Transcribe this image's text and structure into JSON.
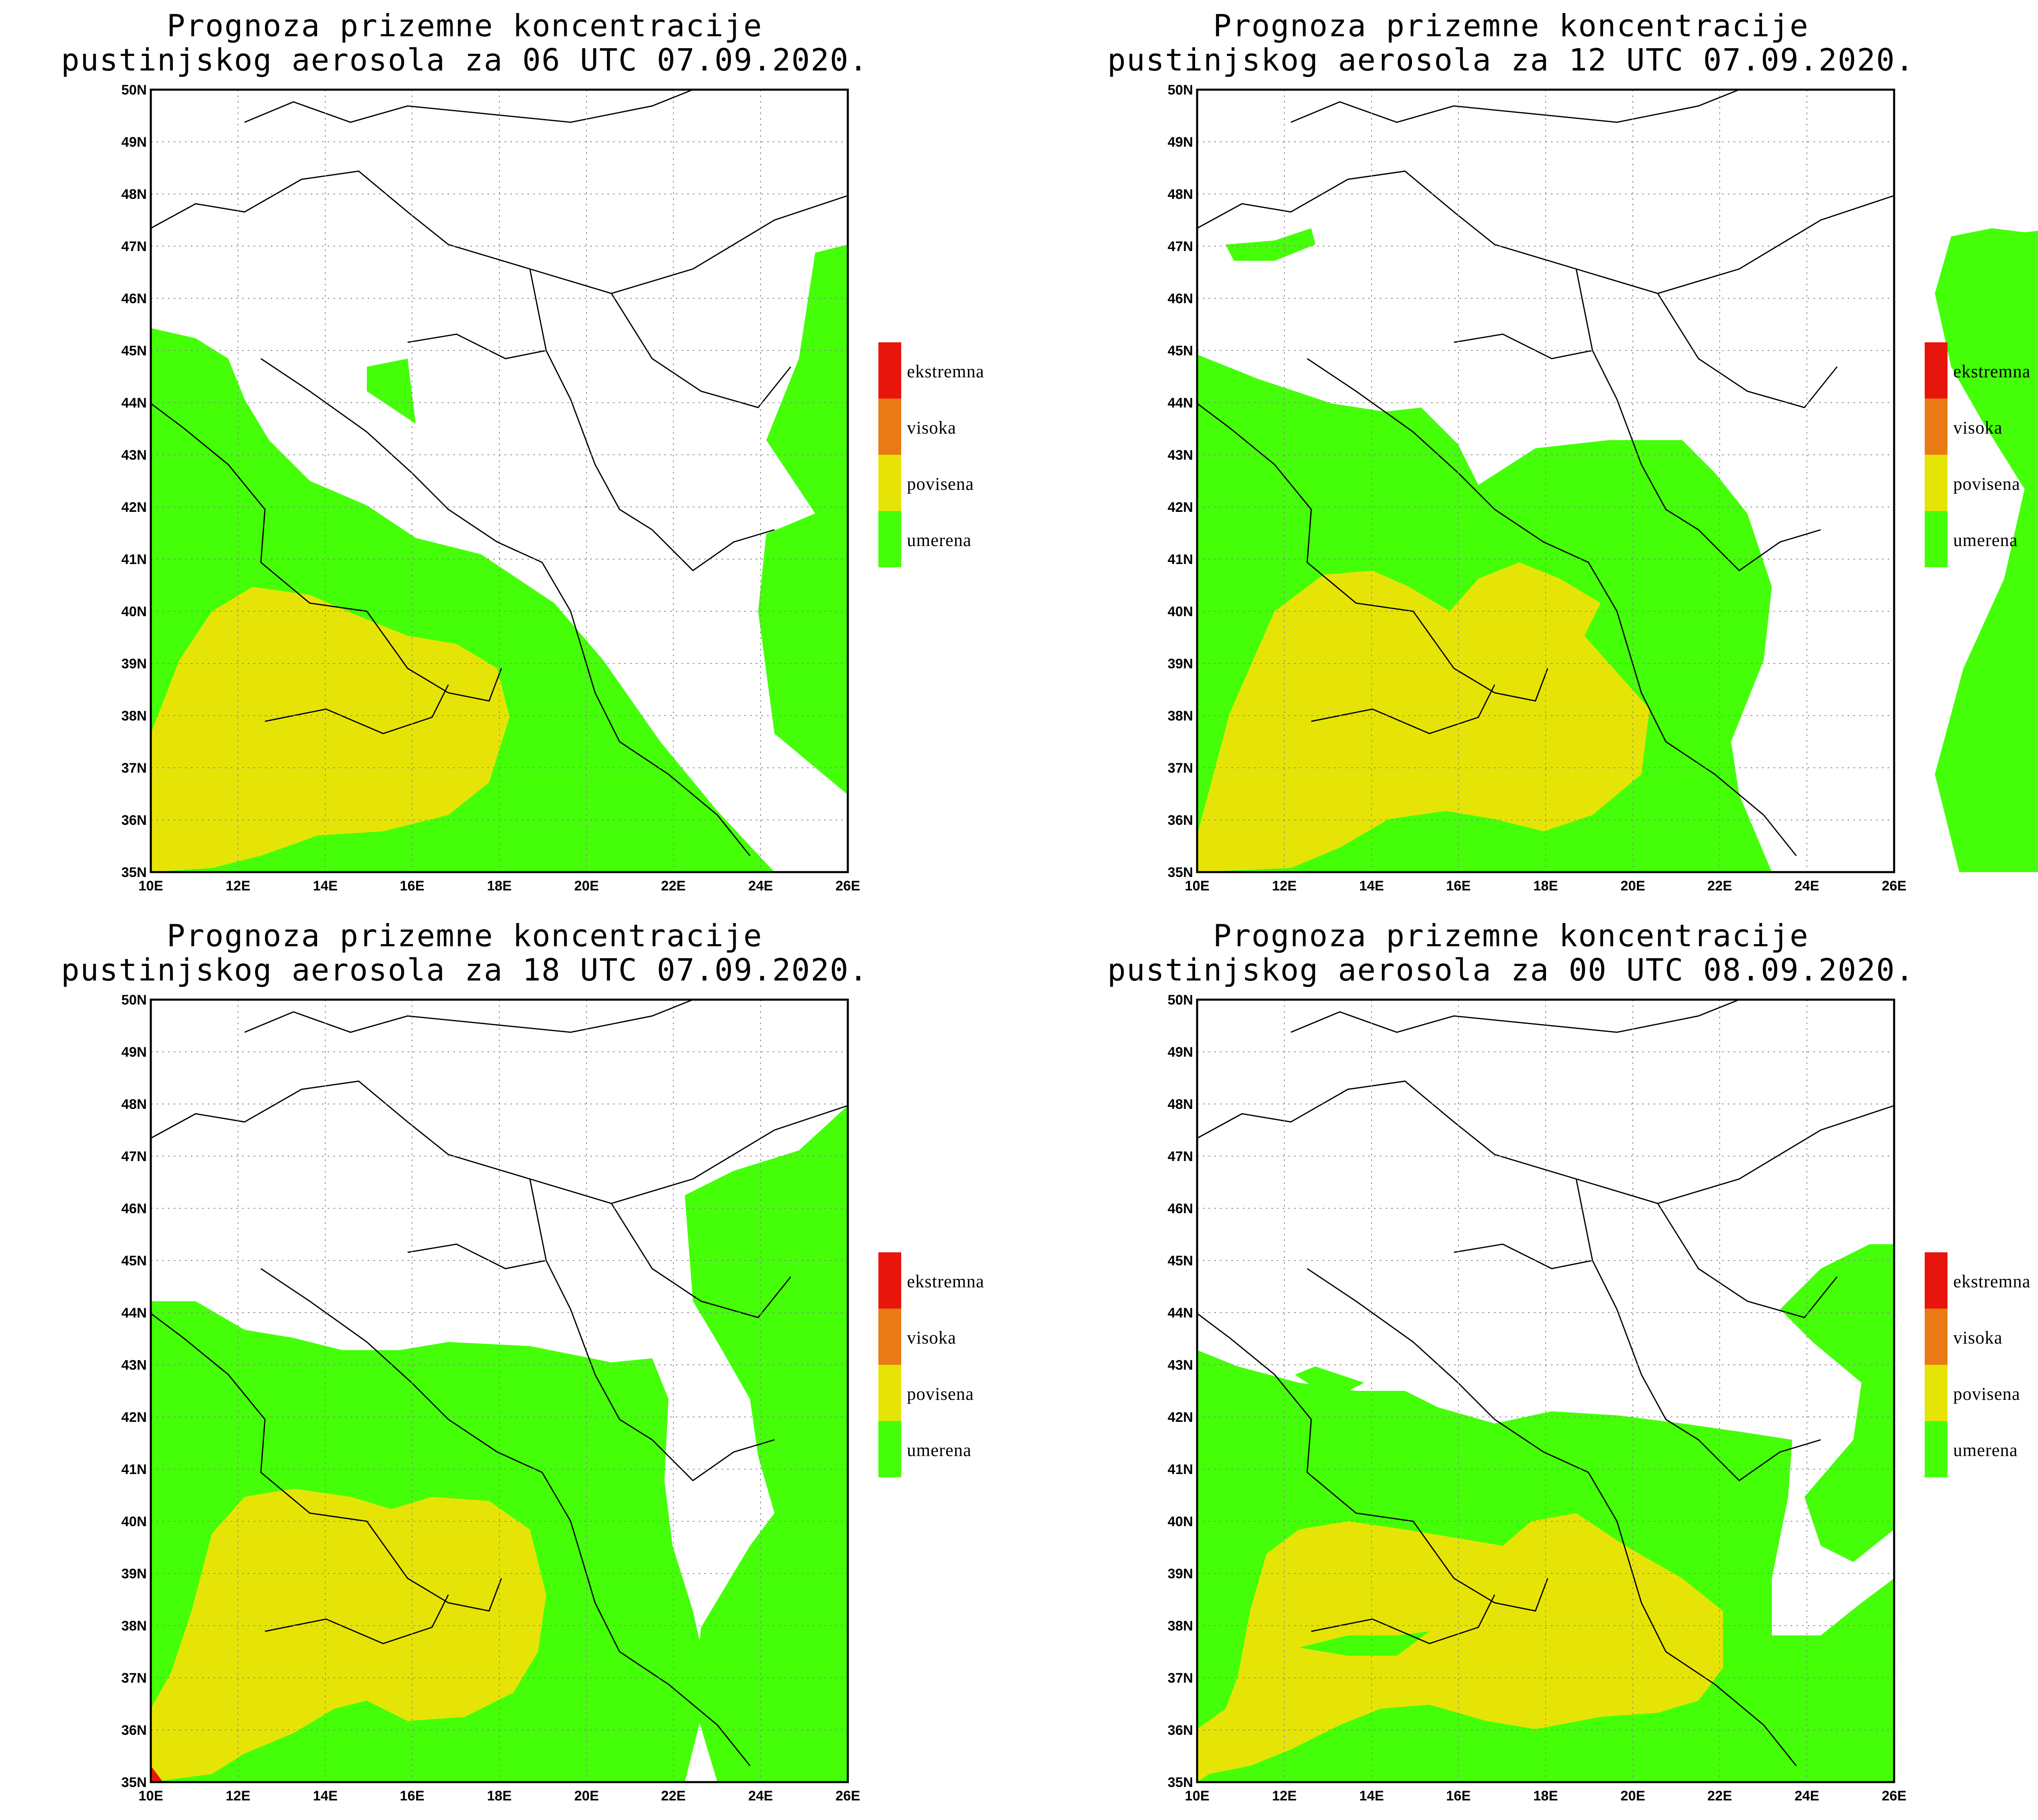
{
  "colors": {
    "ekstremna": "#e8150c",
    "visoka": "#ea7a14",
    "povisena": "#e6e406",
    "umerena": "#44ff08"
  },
  "legend": [
    {
      "label": "ekstremna",
      "color": "#e8150c"
    },
    {
      "label": "visoka",
      "color": "#ea7a14"
    },
    {
      "label": "povisena",
      "color": "#e6e406"
    },
    {
      "label": "umerena",
      "color": "#44ff08"
    }
  ],
  "axes": {
    "lat_labels": [
      "35N",
      "36N",
      "37N",
      "38N",
      "39N",
      "40N",
      "41N",
      "42N",
      "43N",
      "44N",
      "45N",
      "46N",
      "47N",
      "48N",
      "49N",
      "50N"
    ],
    "lon_labels": [
      "10E",
      "12E",
      "14E",
      "16E",
      "18E",
      "20E",
      "22E",
      "24E",
      "26E"
    ]
  },
  "panels": [
    {
      "title_line1": "Prognoza prizemne koncentracije",
      "title_line2": "pustinjskog aerosola za 06 UTC 07.09.2020."
    },
    {
      "title_line1": "Prognoza prizemne koncentracije",
      "title_line2": "pustinjskog aerosola za 12 UTC 07.09.2020."
    },
    {
      "title_line1": "Prognoza prizemne koncentracije",
      "title_line2": "pustinjskog aerosola za 18 UTC 07.09.2020."
    },
    {
      "title_line1": "Prognoza prizemne koncentracije",
      "title_line2": "pustinjskog aerosola za 00 UTC 08.09.2020."
    }
  ]
}
